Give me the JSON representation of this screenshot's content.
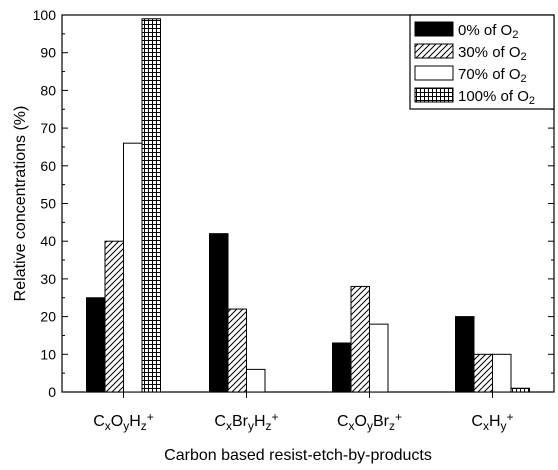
{
  "chart_data": {
    "type": "bar",
    "xlabel": "Carbon based resist-etch-by-products",
    "ylabel": "Relative concentrations (%)",
    "ylim": [
      0,
      100
    ],
    "yticks": [
      0,
      10,
      20,
      30,
      40,
      50,
      60,
      70,
      80,
      90,
      100
    ],
    "categories": [
      {
        "label": "CxOyHz+",
        "parts": [
          [
            "C",
            ""
          ],
          [
            "x",
            "sub"
          ],
          [
            "O",
            ""
          ],
          [
            "y",
            "sub"
          ],
          [
            "H",
            ""
          ],
          [
            "z",
            "sub"
          ],
          [
            "+",
            "sup"
          ]
        ]
      },
      {
        "label": "CxBryHz+",
        "parts": [
          [
            "C",
            ""
          ],
          [
            "x",
            "sub"
          ],
          [
            "Br",
            ""
          ],
          [
            "y",
            "sub"
          ],
          [
            "H",
            ""
          ],
          [
            "z",
            "sub"
          ],
          [
            "+",
            "sup"
          ]
        ]
      },
      {
        "label": "CxOyBrz+",
        "parts": [
          [
            "C",
            ""
          ],
          [
            "x",
            "sub"
          ],
          [
            "O",
            ""
          ],
          [
            "y",
            "sub"
          ],
          [
            "Br",
            ""
          ],
          [
            "z",
            "sub"
          ],
          [
            "+",
            "sup"
          ]
        ]
      },
      {
        "label": "CxHy+",
        "parts": [
          [
            "C",
            ""
          ],
          [
            "x",
            "sub"
          ],
          [
            "H",
            ""
          ],
          [
            "y",
            "sub"
          ],
          [
            "+",
            "sup"
          ]
        ]
      }
    ],
    "series": [
      {
        "name": "0% of O2",
        "parts": [
          [
            "0% of O",
            ""
          ],
          [
            "2",
            "sub"
          ]
        ],
        "pattern": "solid",
        "values": [
          25,
          42,
          13,
          20
        ]
      },
      {
        "name": "30% of O2",
        "parts": [
          [
            "30% of O",
            ""
          ],
          [
            "2",
            "sub"
          ]
        ],
        "pattern": "hatch",
        "values": [
          40,
          22,
          28,
          10
        ]
      },
      {
        "name": "70% of O2",
        "parts": [
          [
            "70% of O",
            ""
          ],
          [
            "2",
            "sub"
          ]
        ],
        "pattern": "white",
        "values": [
          66,
          6,
          18,
          10
        ]
      },
      {
        "name": "100% of O2",
        "parts": [
          [
            "100% of O",
            ""
          ],
          [
            "2",
            "sub"
          ]
        ],
        "pattern": "grid",
        "values": [
          99,
          0,
          0,
          1
        ]
      }
    ],
    "legend_position": "top-right",
    "grid": false
  }
}
